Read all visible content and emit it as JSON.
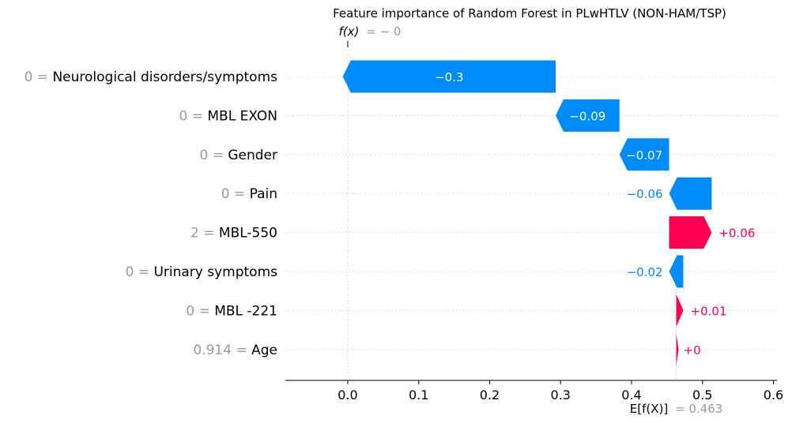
{
  "chart_data": {
    "type": "bar",
    "subtype": "waterfall",
    "title": "Feature importance of Random Forest in PLwHTLV (NON-HAM/TSP)",
    "fx_symbol": "f(x)",
    "fx_value_text": "= − 0",
    "efx_symbol": "E[f(X)]",
    "efx_value_text": "= 0.463",
    "base_value": 0.463,
    "final_value": 0.0,
    "xlim": [
      -0.088,
      0.605
    ],
    "x_ticks": [
      0.0,
      0.1,
      0.2,
      0.3,
      0.4,
      0.5,
      0.6
    ],
    "x_tick_labels": [
      "0.0",
      "0.1",
      "0.2",
      "0.3",
      "0.4",
      "0.5",
      "0.6"
    ],
    "features": [
      {
        "value": "0",
        "name": "Neurological disorders/symptoms",
        "contribution": -0.3,
        "label": "−0.3"
      },
      {
        "value": "0",
        "name": "MBL EXON",
        "contribution": -0.09,
        "label": "−0.09"
      },
      {
        "value": "0",
        "name": "Gender",
        "contribution": -0.07,
        "label": "−0.07"
      },
      {
        "value": "0",
        "name": "Pain",
        "contribution": -0.06,
        "label": "−0.06"
      },
      {
        "value": "2",
        "name": "MBL-550",
        "contribution": 0.06,
        "label": "+0.06"
      },
      {
        "value": "0",
        "name": "Urinary symptoms",
        "contribution": -0.02,
        "label": "−0.02"
      },
      {
        "value": "0",
        "name": "MBL -221",
        "contribution": 0.01,
        "label": "+0.01"
      },
      {
        "value": "0.914",
        "name": "Age",
        "contribution": 0.0,
        "label": "+0"
      }
    ],
    "colors": {
      "positive": "#ff0051",
      "negative": "#008bfb",
      "feature_value": "#999999",
      "feature_name": "#000000",
      "grid": "#cccccc"
    },
    "grid": true
  }
}
